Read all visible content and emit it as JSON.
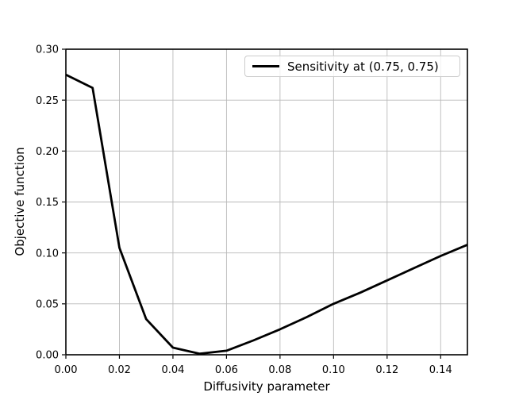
{
  "chart_data": {
    "type": "line",
    "title": "",
    "xlabel": "Diffusivity parameter",
    "ylabel": "Objective function",
    "xlim": [
      0,
      0.15
    ],
    "ylim": [
      0,
      0.3
    ],
    "xtick_labels": [
      "0.00",
      "0.02",
      "0.04",
      "0.06",
      "0.08",
      "0.10",
      "0.12",
      "0.14"
    ],
    "ytick_labels": [
      "0.00",
      "0.05",
      "0.10",
      "0.15",
      "0.20",
      "0.25",
      "0.30"
    ],
    "grid": true,
    "legend_position": "upper right",
    "series": [
      {
        "name": "Sensitivity at (0.75, 0.75)",
        "color": "#000000",
        "x": [
          0.0,
          0.01,
          0.02,
          0.03,
          0.04,
          0.05,
          0.06,
          0.07,
          0.08,
          0.09,
          0.1,
          0.11,
          0.12,
          0.13,
          0.14,
          0.15
        ],
        "y": [
          0.275,
          0.262,
          0.105,
          0.035,
          0.007,
          0.001,
          0.004,
          0.014,
          0.025,
          0.037,
          0.05,
          0.061,
          0.073,
          0.085,
          0.097,
          0.108
        ]
      }
    ],
    "colors": {
      "background": "#ffffff",
      "grid": "#b9b9b9",
      "spine": "#000000",
      "tick": "#000000",
      "legend_border": "#cccccc"
    }
  }
}
